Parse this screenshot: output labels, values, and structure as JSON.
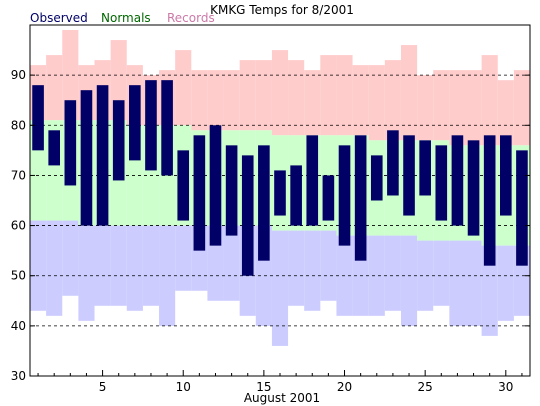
{
  "chart_data": {
    "type": "bar",
    "title": "KMKG Temps for 8/2001",
    "xlabel": "August 2001",
    "ylabel": "",
    "ylim": [
      30,
      100
    ],
    "yticks": [
      30,
      40,
      50,
      60,
      70,
      80,
      90
    ],
    "xlim": [
      0.5,
      31.5
    ],
    "xticks": [
      5,
      10,
      15,
      20,
      25,
      30
    ],
    "grid": true,
    "legend_position": "top-left",
    "days": [
      1,
      2,
      3,
      4,
      5,
      6,
      7,
      8,
      9,
      10,
      11,
      12,
      13,
      14,
      15,
      16,
      17,
      18,
      19,
      20,
      21,
      22,
      23,
      24,
      25,
      26,
      27,
      28,
      29,
      30,
      31
    ],
    "series": [
      {
        "name": "Records",
        "color": "#cc79a7",
        "band_color": "#ffcccc",
        "low_band_color": "#ccccff",
        "high": [
          92,
          94,
          99,
          92,
          93,
          97,
          92,
          90,
          91,
          95,
          91,
          91,
          91,
          93,
          93,
          95,
          93,
          91,
          94,
          94,
          92,
          92,
          93,
          96,
          90,
          91,
          91,
          91,
          94,
          89,
          91
        ],
        "low": [
          43,
          42,
          46,
          41,
          44,
          44,
          43,
          44,
          40,
          47,
          47,
          45,
          45,
          42,
          40,
          36,
          44,
          43,
          45,
          42,
          42,
          42,
          43,
          40,
          43,
          44,
          40,
          40,
          38,
          41,
          42
        ]
      },
      {
        "name": "Normals",
        "color": "#006600",
        "band_color": "#ccffcc",
        "high": [
          81,
          81,
          81,
          81,
          81,
          81,
          80,
          80,
          80,
          80,
          79,
          79,
          79,
          79,
          79,
          78,
          78,
          78,
          78,
          78,
          78,
          77,
          77,
          77,
          77,
          77,
          76,
          76,
          76,
          76,
          76
        ],
        "low": [
          61,
          61,
          61,
          60,
          60,
          60,
          60,
          60,
          60,
          60,
          60,
          60,
          60,
          60,
          60,
          59,
          59,
          59,
          59,
          58,
          58,
          58,
          58,
          58,
          57,
          57,
          57,
          57,
          56,
          56,
          56
        ]
      },
      {
        "name": "Observed",
        "color": "#000066",
        "high": [
          88,
          79,
          85,
          87,
          88,
          85,
          88,
          89,
          89,
          75,
          78,
          80,
          76,
          74,
          76,
          71,
          72,
          78,
          70,
          76,
          78,
          74,
          79,
          78,
          77,
          76,
          78,
          77,
          78,
          78,
          75
        ],
        "low": [
          75,
          72,
          68,
          60,
          60,
          69,
          73,
          71,
          70,
          61,
          55,
          56,
          58,
          50,
          53,
          62,
          60,
          60,
          61,
          56,
          53,
          65,
          66,
          62,
          66,
          61,
          60,
          58,
          52,
          62,
          52
        ]
      }
    ]
  }
}
